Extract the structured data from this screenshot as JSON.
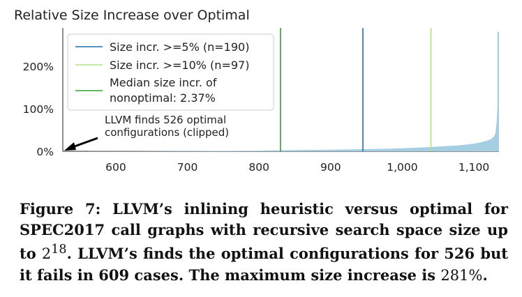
{
  "chart_data": {
    "type": "bar",
    "title": "Relative Size Increase over Optimal",
    "xlabel": "",
    "ylabel": "",
    "xlim": [
      526,
      1135
    ],
    "ylim": [
      0,
      290
    ],
    "x_ticks": [
      600,
      700,
      800,
      900,
      1000,
      1100
    ],
    "x_tick_labels": [
      "600",
      "700",
      "800",
      "900",
      "1,000",
      "1,100"
    ],
    "y_ticks": [
      0,
      100,
      200
    ],
    "y_tick_labels": [
      "0%",
      "100%",
      "200%"
    ],
    "grid": false,
    "legend_position": "top-left",
    "bar_color": "#a6cee3",
    "series": [
      {
        "x": [
          527,
          560,
          600,
          650,
          700,
          750,
          800,
          830,
          850,
          900,
          945,
          980,
          1000,
          1040,
          1060,
          1080,
          1100,
          1110,
          1120,
          1125,
          1128,
          1130,
          1131,
          1132,
          1133,
          1134,
          1135
        ],
        "values": [
          0.05,
          0.1,
          0.2,
          0.4,
          0.6,
          0.9,
          1.5,
          2.37,
          2.8,
          3.6,
          5,
          6,
          7,
          10,
          12,
          14,
          18,
          21,
          26,
          30,
          35,
          42,
          55,
          75,
          110,
          180,
          281
        ]
      }
    ],
    "vlines": [
      {
        "name": "Size incr. >=5% (n=190)",
        "x": 945,
        "color": "#1f6fa8"
      },
      {
        "name": "Size incr. >=10% (n=97)",
        "x": 1040,
        "color": "#b2df8a"
      },
      {
        "name": "Median size incr. of nonoptimal: 2.37%",
        "x": 830,
        "color": "#33a02c"
      }
    ],
    "annotation": {
      "line1": "LLVM finds 526 optimal",
      "line2": "configurations (clipped)"
    }
  },
  "legend": {
    "items": [
      {
        "line1": "Size incr. >=5% (n=190)",
        "line2": "",
        "color": "#1f6fa8"
      },
      {
        "line1": "Size incr. >=10% (n=97)",
        "line2": "",
        "color": "#b2df8a"
      },
      {
        "line1": "Median size incr. of",
        "line2": "nonoptimal: 2.37%",
        "color": "#33a02c"
      }
    ]
  },
  "caption": {
    "part1": "Figure 7: LLVM’s inlining heuristic versus optimal for SPEC2017 call graphs with recursive search space size up to ",
    "base": "2",
    "exp": "18",
    "part2": ". LLVM’s finds the optimal configurations for 526 but it fails in 609 cases. The maximum size increase is ",
    "max_value": "281%",
    "part3": "."
  }
}
